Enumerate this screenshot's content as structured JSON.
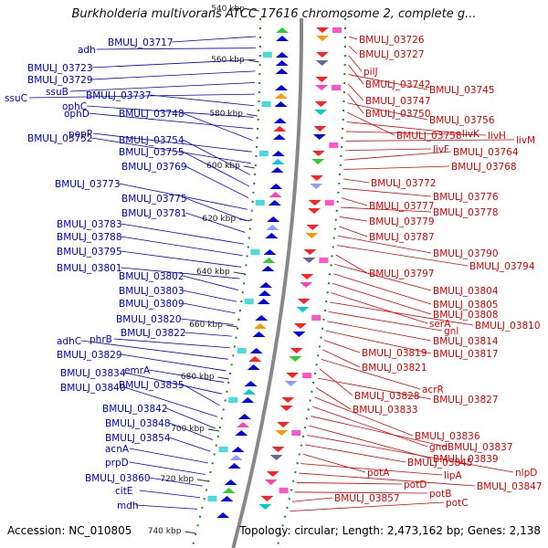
{
  "title": "Burkholderia multivorans ATCC 17616 chromosome 2, complete g...",
  "accession": "Accession: NC_010805",
  "summary": "Topology: circular; Length: 2,473,162 bp; Genes: 2,138",
  "colors": {
    "left_labels": "#0000cc",
    "right_labels": "#dd0000",
    "backbone": "#888888",
    "ticks": "#1a8a1a"
  },
  "scale_ticks": [
    "540 kbp",
    "560 kbp",
    "580 kbp",
    "600 kbp",
    "620 kbp",
    "640 kbp",
    "660 kbp",
    "680 kbp",
    "700 kbp",
    "720 kbp",
    "740 kbp"
  ],
  "left_labels": [
    "BMULJ_03717",
    "adh",
    "BMULJ_03723",
    "BMULJ_03729",
    "ssuB",
    "ssuC",
    "BMULJ_03737",
    "ophC",
    "ophD",
    "BMULJ_03748",
    "pepP",
    "BMULJ_03752",
    "BMULJ_03754",
    "BMULJ_03755",
    "BMULJ_03769",
    "BMULJ_03773",
    "BMULJ_03775",
    "BMULJ_03781",
    "BMULJ_03783",
    "BMULJ_03788",
    "BMULJ_03795",
    "BMULJ_03801",
    "BMULJ_03802",
    "BMULJ_03803",
    "BMULJ_03809",
    "BMULJ_03820",
    "BMULJ_03822",
    "phrB",
    "adhC",
    "BMULJ_03829",
    "emrA",
    "BMULJ_03834",
    "BMULJ_03835",
    "BMULJ_03840",
    "BMULJ_03842",
    "BMULJ_03848",
    "BMULJ_03854",
    "acnA",
    "prpD",
    "BMULJ_03860",
    "citE",
    "mdh"
  ],
  "right_labels": [
    "BMULJ_03726",
    "BMULJ_03727",
    "pilJ",
    "BMULJ_03742",
    "BMULJ_03745",
    "BMULJ_03747",
    "BMULJ_03750",
    "BMULJ_03756",
    "BMULJ_03758",
    "livK",
    "livH",
    "livM",
    "livF",
    "BMULJ_03764",
    "BMULJ_03768",
    "BMULJ_03772",
    "BMULJ_03776",
    "BMULJ_03777",
    "BMULJ_03778",
    "BMULJ_03779",
    "BMULJ_03787",
    "BMULJ_03790",
    "BMULJ_03794",
    "BMULJ_03797",
    "BMULJ_03804",
    "BMULJ_03805",
    "BMULJ_03808",
    "serA",
    "BMULJ_03810",
    "gnl",
    "BMULJ_03814",
    "BMULJ_03817",
    "BMULJ_03819",
    "BMULJ_03821",
    "acrR",
    "BMULJ_03828",
    "BMULJ_03827",
    "BMULJ_03833",
    "BMULJ_03836",
    "gnd",
    "BMULJ_03837",
    "BMULJ_03839",
    "nlpD",
    "BMULJ_03845",
    "potA",
    "lipA",
    "BMULJ_03847",
    "potD",
    "potB",
    "BMULJ_03857",
    "potC"
  ]
}
